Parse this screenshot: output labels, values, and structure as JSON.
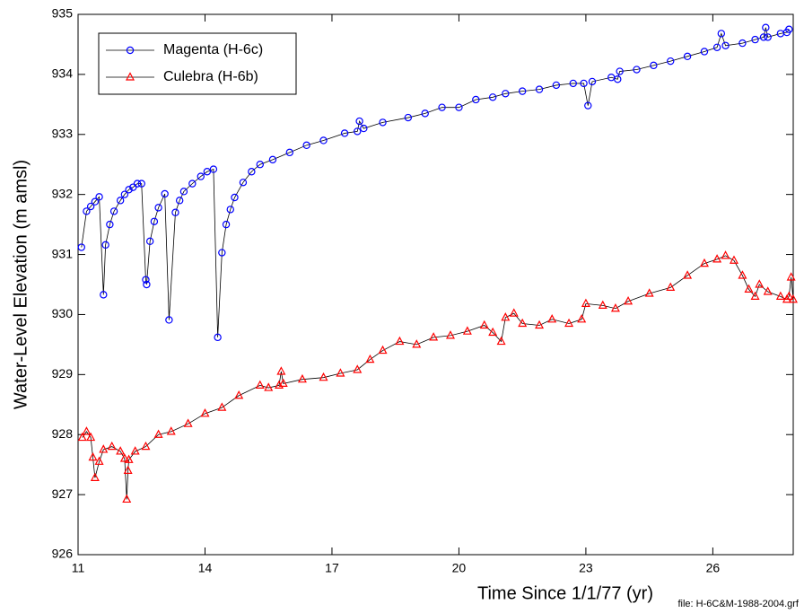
{
  "chart_data": {
    "type": "line",
    "y_label": "Water-Level Elevation (m amsl)",
    "x_label": "Time Since 1/1/77 (yr)",
    "footnote": "file: H-6C&M-1988-2004.grf",
    "xlim": [
      11,
      27.9
    ],
    "xticks": [
      11,
      14,
      17,
      20,
      23,
      26
    ],
    "ylim": [
      926,
      935
    ],
    "yticks": [
      926,
      927,
      928,
      929,
      930,
      931,
      932,
      933,
      934,
      935
    ],
    "line_color": "#000000",
    "series": [
      {
        "name": "Magenta (H-6c)",
        "color": "#0000ff",
        "marker": "circle",
        "x": [
          11.08,
          11.2,
          11.3,
          11.4,
          11.5,
          11.6,
          11.65,
          11.75,
          11.85,
          12.0,
          12.1,
          12.2,
          12.3,
          12.4,
          12.5,
          12.6,
          12.62,
          12.7,
          12.8,
          12.9,
          13.05,
          13.15,
          13.3,
          13.4,
          13.5,
          13.7,
          13.9,
          14.05,
          14.2,
          14.3,
          14.4,
          14.5,
          14.6,
          14.7,
          14.9,
          15.1,
          15.3,
          15.6,
          16.0,
          16.4,
          16.8,
          17.3,
          17.6,
          17.65,
          17.75,
          18.2,
          18.8,
          19.2,
          19.6,
          20.0,
          20.4,
          20.8,
          21.1,
          21.5,
          21.9,
          22.3,
          22.7,
          22.95,
          23.05,
          23.15,
          23.6,
          23.75,
          23.8,
          24.2,
          24.6,
          25.0,
          25.4,
          25.8,
          26.1,
          26.2,
          26.3,
          26.7,
          27.0,
          27.2,
          27.25,
          27.3,
          27.6,
          27.75,
          27.8
        ],
        "values": [
          931.12,
          931.72,
          931.8,
          931.88,
          931.96,
          930.33,
          931.16,
          931.5,
          931.72,
          931.9,
          932.0,
          932.08,
          932.12,
          932.18,
          932.18,
          930.58,
          930.5,
          931.22,
          931.55,
          931.78,
          932.01,
          929.91,
          931.7,
          931.9,
          932.05,
          932.18,
          932.3,
          932.38,
          932.42,
          929.62,
          931.03,
          931.5,
          931.75,
          931.95,
          932.2,
          932.38,
          932.5,
          932.58,
          932.7,
          932.82,
          932.9,
          933.02,
          933.05,
          933.22,
          933.1,
          933.2,
          933.28,
          933.35,
          933.45,
          933.45,
          933.58,
          933.62,
          933.68,
          933.72,
          933.75,
          933.82,
          933.85,
          933.85,
          933.48,
          933.88,
          933.95,
          933.92,
          934.05,
          934.08,
          934.15,
          934.22,
          934.3,
          934.38,
          934.45,
          934.68,
          934.48,
          934.52,
          934.58,
          934.62,
          934.78,
          934.62,
          934.68,
          934.7,
          934.75
        ]
      },
      {
        "name": "Culebra (H-6b)",
        "color": "#ff0000",
        "marker": "triangle",
        "x": [
          11.1,
          11.2,
          11.3,
          11.35,
          11.4,
          11.5,
          11.6,
          11.8,
          12.0,
          12.1,
          12.15,
          12.18,
          12.2,
          12.35,
          12.6,
          12.9,
          13.2,
          13.6,
          14.0,
          14.4,
          14.8,
          15.3,
          15.5,
          15.75,
          15.8,
          15.85,
          16.3,
          16.8,
          17.2,
          17.6,
          17.9,
          18.2,
          18.6,
          19.0,
          19.4,
          19.8,
          20.2,
          20.6,
          20.8,
          21.0,
          21.1,
          21.3,
          21.5,
          21.9,
          22.2,
          22.6,
          22.9,
          23.0,
          23.4,
          23.7,
          24.0,
          24.5,
          25.0,
          25.4,
          25.8,
          26.1,
          26.3,
          26.5,
          26.7,
          26.85,
          27.0,
          27.1,
          27.3,
          27.6,
          27.75,
          27.8,
          27.85,
          27.9
        ],
        "values": [
          927.95,
          928.05,
          927.95,
          927.62,
          927.28,
          927.55,
          927.75,
          927.8,
          927.72,
          927.6,
          926.92,
          927.4,
          927.58,
          927.72,
          927.8,
          928.0,
          928.05,
          928.18,
          928.35,
          928.45,
          928.65,
          928.82,
          928.78,
          928.82,
          929.05,
          928.85,
          928.92,
          928.95,
          929.02,
          929.08,
          929.25,
          929.4,
          929.55,
          929.5,
          929.62,
          929.65,
          929.72,
          929.82,
          929.7,
          929.55,
          929.95,
          930.02,
          929.85,
          929.82,
          929.92,
          929.85,
          929.92,
          930.18,
          930.15,
          930.1,
          930.22,
          930.35,
          930.45,
          930.65,
          930.85,
          930.92,
          930.98,
          930.9,
          930.65,
          930.42,
          930.3,
          930.5,
          930.38,
          930.3,
          930.25,
          930.3,
          930.62,
          930.25
        ]
      }
    ]
  }
}
